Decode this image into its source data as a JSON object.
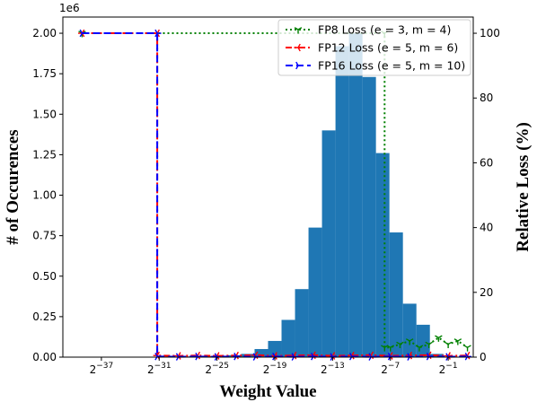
{
  "chart_data": {
    "type": "bar",
    "xlabel": "Weight Value",
    "ylabel_left": "# of Occurences",
    "ylabel_right": "Relative Loss (%)",
    "y_offset_label": "1e6",
    "x_scale": "log2",
    "x_tick_exponents": [
      -37,
      -31,
      -25,
      -19,
      -13,
      -7,
      -1
    ],
    "x_tick_base": "2",
    "xlim_log2": [
      -41,
      1.6
    ],
    "ylim_left": [
      0,
      2.1
    ],
    "y_ticks_left": [
      "0.00",
      "0.25",
      "0.50",
      "0.75",
      "1.00",
      "1.25",
      "1.50",
      "1.75",
      "2.00"
    ],
    "ylim_right": [
      0,
      105
    ],
    "y_ticks_right": [
      "0",
      "20",
      "40",
      "60",
      "80",
      "100"
    ],
    "histogram": {
      "bin_width_log2": 1.4,
      "bins": [
        {
          "x_log2": -30.9,
          "count": 0.002
        },
        {
          "x_log2": -29.5,
          "count": 0.003
        },
        {
          "x_log2": -28.1,
          "count": 0.004
        },
        {
          "x_log2": -26.7,
          "count": 0.006
        },
        {
          "x_log2": -25.3,
          "count": 0.008
        },
        {
          "x_log2": -23.9,
          "count": 0.012
        },
        {
          "x_log2": -22.5,
          "count": 0.02
        },
        {
          "x_log2": -21.1,
          "count": 0.05
        },
        {
          "x_log2": -19.7,
          "count": 0.1
        },
        {
          "x_log2": -18.3,
          "count": 0.23
        },
        {
          "x_log2": -16.9,
          "count": 0.42
        },
        {
          "x_log2": -15.5,
          "count": 0.8
        },
        {
          "x_log2": -14.1,
          "count": 1.4
        },
        {
          "x_log2": -12.7,
          "count": 1.92
        },
        {
          "x_log2": -11.3,
          "count": 2.0
        },
        {
          "x_log2": -9.9,
          "count": 1.73
        },
        {
          "x_log2": -8.5,
          "count": 1.26
        },
        {
          "x_log2": -7.1,
          "count": 0.77
        },
        {
          "x_log2": -5.7,
          "count": 0.33
        },
        {
          "x_log2": -4.3,
          "count": 0.2
        },
        {
          "x_log2": -2.9,
          "count": 0.02
        }
      ]
    },
    "series": [
      {
        "name": "FP8 Loss (e = 3, m = 4)",
        "color": "#008000",
        "marker": "tri_down",
        "style": "dotted",
        "x_log2": [
          -39,
          -7.6,
          -7.6,
          -7.0,
          -6.0,
          -5.0,
          -4.0,
          -3.0,
          -2.0,
          -1.0,
          0.0,
          1.0
        ],
        "y": [
          100,
          100,
          3,
          3,
          4,
          5,
          3,
          4,
          6,
          4,
          5,
          3
        ]
      },
      {
        "name": "FP12 Loss (e = 5, m = 6)",
        "color": "#ff0000",
        "marker": "tri_left",
        "style": "dashdot",
        "x_log2": [
          -39,
          -31.2,
          -31.2,
          -29,
          -27,
          -25,
          -23,
          -21,
          -19,
          -17,
          -15,
          -13,
          -11,
          -9,
          -7,
          -5,
          -3,
          -1,
          1
        ],
        "y": [
          100,
          100,
          0.5,
          0.4,
          0.5,
          0.4,
          0.5,
          0.6,
          0.4,
          0.5,
          0.6,
          0.4,
          0.5,
          0.6,
          0.4,
          0.5,
          0.6,
          0.4,
          0.5
        ]
      },
      {
        "name": "FP16 Loss (e = 5, m = 10)",
        "color": "#0000ff",
        "marker": "tri_right",
        "style": "dashed",
        "x_log2": [
          -39,
          -31.2,
          -31.2,
          -29,
          -27,
          -25,
          -23,
          -21,
          -19,
          -17,
          -15,
          -13,
          -11,
          -9,
          -7,
          -5,
          -3,
          -1,
          1
        ],
        "y": [
          100,
          100,
          0.2,
          0.1,
          0.2,
          0.1,
          0.2,
          0.1,
          0.2,
          0.1,
          0.2,
          0.1,
          0.2,
          0.1,
          0.2,
          0.1,
          0.2,
          0.1,
          0.2
        ]
      }
    ],
    "bar_color": "#1f77b4",
    "legend_position": "top-right",
    "grid": false
  }
}
